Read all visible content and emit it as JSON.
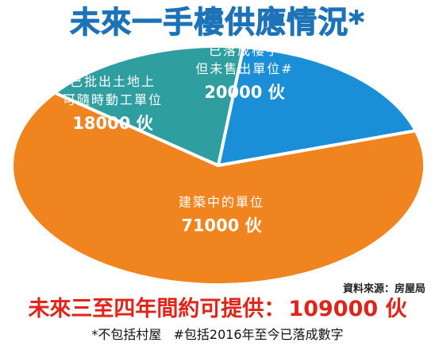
{
  "title": "未來一手樓供應情況*",
  "source": "資料來源：房屋局",
  "summary": {
    "label": "未來三至四年間約可提供：",
    "value": "109000 伙"
  },
  "footnotes": [
    "*不包括村屋",
    "#包括2016年至今已落成數字"
  ],
  "chart_data": {
    "type": "pie",
    "title": "未來一手樓供應情況*",
    "slices": [
      {
        "label_lines": [
          "已落成樓宇",
          "但未售出單位#"
        ],
        "value": 20000,
        "value_label": "20000 伙",
        "color": "#1a8fd8"
      },
      {
        "label_lines": [
          "建築中的單位"
        ],
        "value": 71000,
        "value_label": "71000 伙",
        "color": "#f0841f"
      },
      {
        "label_lines": [
          "已批出土地上",
          "可隨時動工單位"
        ],
        "value": 18000,
        "value_label": "18000 伙",
        "color": "#2f9ea0"
      }
    ],
    "total": 109000
  }
}
